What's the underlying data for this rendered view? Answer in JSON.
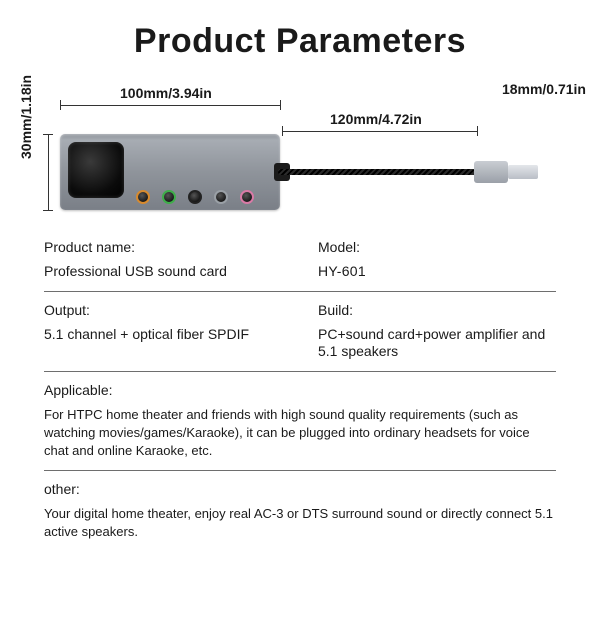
{
  "title": "Product Parameters",
  "dimensions": {
    "height": "30mm/1.18in",
    "body_length": "100mm/3.94in",
    "cable_length": "120mm/4.72in",
    "plug_length": "18mm/0.71in"
  },
  "colors": {
    "body_metal": "#8f949b",
    "jack_orange": "#d78a2e",
    "jack_green": "#3fae4a",
    "jack_black": "#222222",
    "jack_grey": "#9aa0a6",
    "jack_pink": "#d97aa6",
    "text": "#1a1a1a",
    "rule": "#6e6e6e"
  },
  "specs": {
    "product_name": {
      "label": "Product name:",
      "value": "Professional USB sound card"
    },
    "model": {
      "label": "Model:",
      "value": "HY-601"
    },
    "output": {
      "label": "Output:",
      "value": "5.1 channel + optical fiber SPDIF"
    },
    "build": {
      "label": "Build:",
      "value": "PC+sound card+power amplifier and 5.1 speakers"
    },
    "applicable": {
      "label": "Applicable:",
      "value": "For HTPC home theater and friends with high sound quality requirements (such as watching movies/games/Karaoke), it can be plugged into ordinary headsets for voice chat and online Karaoke, etc."
    },
    "other": {
      "label": "other:",
      "value": "Your digital home theater, enjoy real AC-3 or DTS surround sound or directly connect 5.1 active speakers."
    }
  }
}
